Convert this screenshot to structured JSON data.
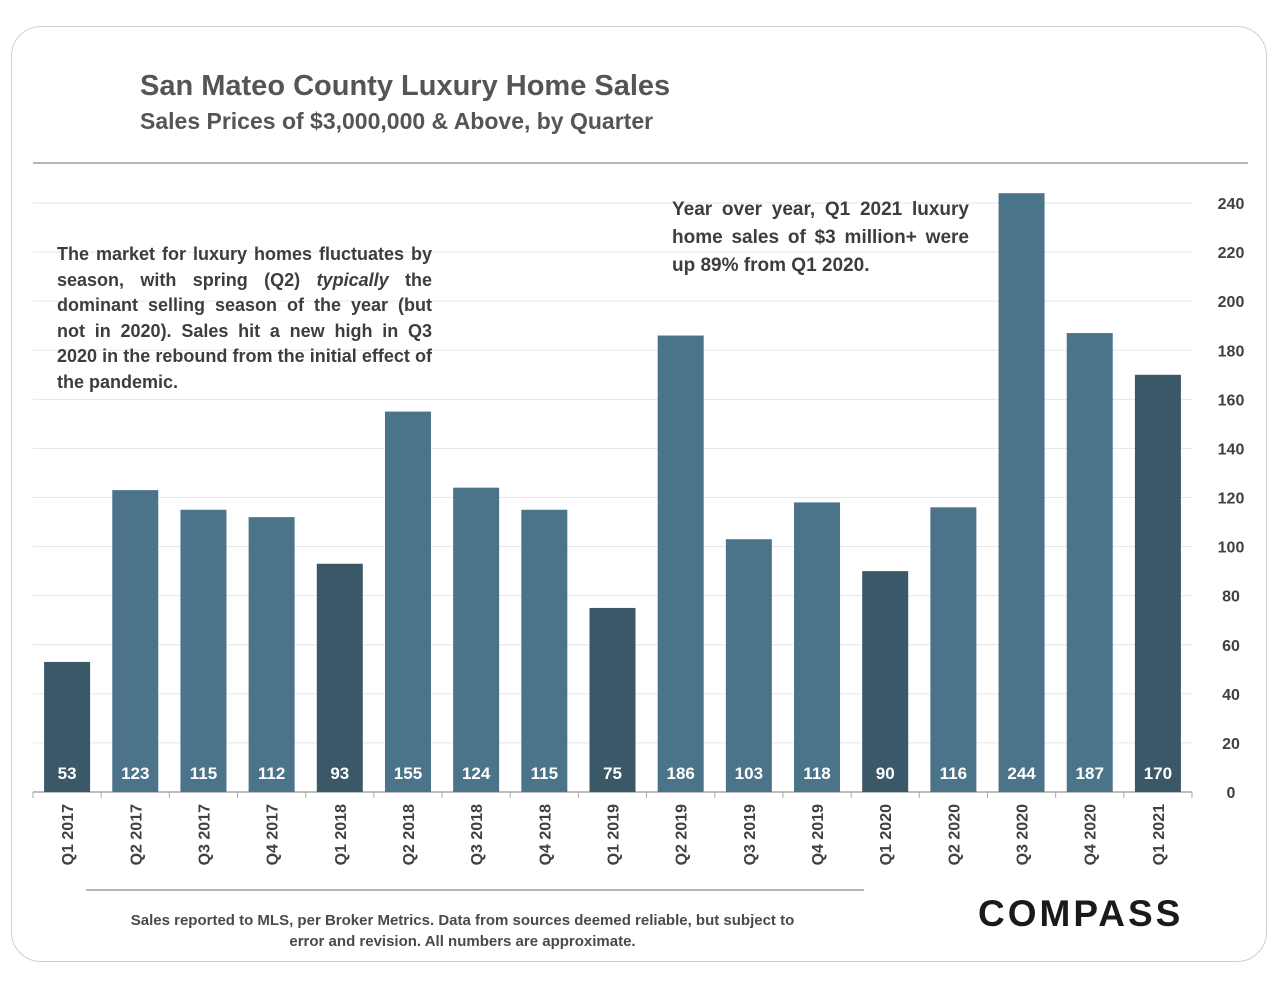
{
  "header": {
    "title": "San Mateo County Luxury Home Sales",
    "subtitle": "Sales Prices of $3,000,000 & Above, by Quarter"
  },
  "annotations": {
    "left_before": "The market for luxury homes fluctuates by season, with spring (Q2) ",
    "left_emphasis": "typically",
    "left_after": " the dominant selling season of the year (but not in 2020).  Sales hit a new high in Q3 2020 in the rebound from the initial effect of the pandemic.",
    "right": "Year over year, Q1 2021 luxury home sales of $3 million+ were up 89% from Q1 2020."
  },
  "footer": {
    "note": "Sales reported to MLS, per Broker Metrics. Data from sources deemed reliable, but subject to error and revision. All numbers are approximate.",
    "logo": "COMPASS"
  },
  "colors": {
    "q1_bar": "#3b5869",
    "other_bar": "#4b7389",
    "grid": "#e6e6e6",
    "axis_text": "#404040",
    "label_text": "#ffffff"
  },
  "chart_data": {
    "type": "bar",
    "title": "San Mateo County Luxury Home Sales",
    "subtitle": "Sales Prices of $3,000,000 & Above, by Quarter",
    "categories": [
      "Q1 2017",
      "Q2 2017",
      "Q3 2017",
      "Q4 2017",
      "Q1 2018",
      "Q2 2018",
      "Q3 2018",
      "Q4 2018",
      "Q1 2019",
      "Q2 2019",
      "Q3 2019",
      "Q4 2019",
      "Q1 2020",
      "Q2 2020",
      "Q3 2020",
      "Q4 2020",
      "Q1 2021"
    ],
    "values": [
      53,
      123,
      115,
      112,
      93,
      155,
      124,
      115,
      75,
      186,
      103,
      118,
      90,
      116,
      244,
      187,
      170
    ],
    "ylim": [
      0,
      240
    ],
    "yticks": [
      0,
      20,
      40,
      60,
      80,
      100,
      120,
      140,
      160,
      180,
      200,
      220,
      240
    ],
    "y_axis_position": "right",
    "data_labels": "inside-bottom",
    "highlight_q1": true,
    "grid": true
  }
}
